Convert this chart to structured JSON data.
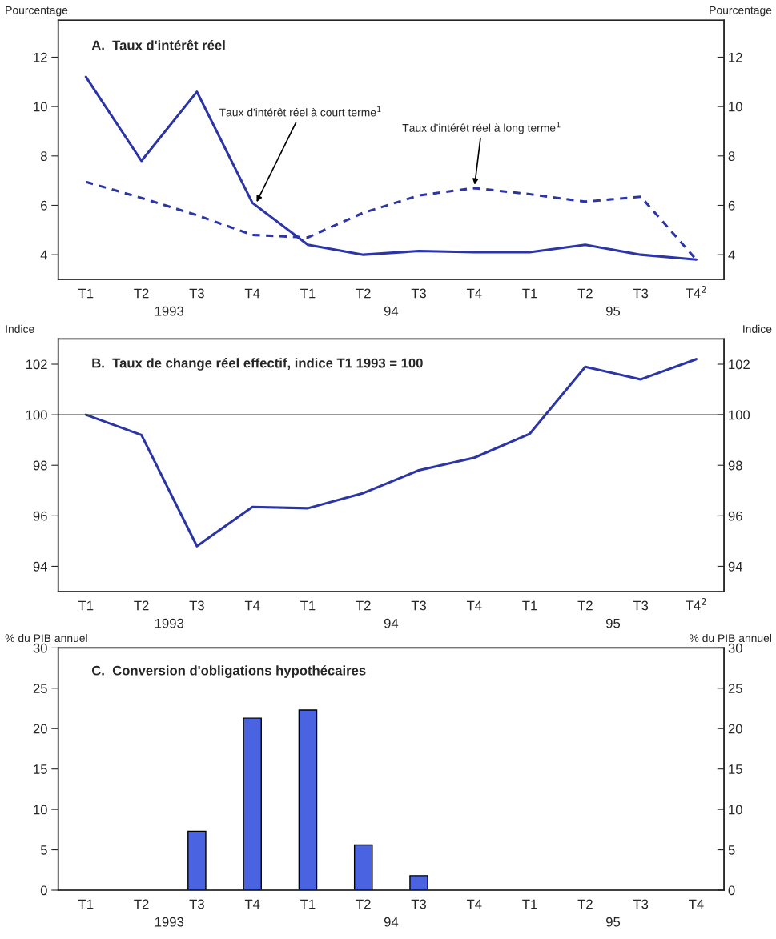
{
  "chart_data": [
    {
      "type": "line",
      "title": "A.  Taux d'intérêt réel",
      "ylabel": "Pourcentage",
      "y2label": "Pourcentage",
      "categories": [
        "T1",
        "T2",
        "T3",
        "T4",
        "T1",
        "T2",
        "T3",
        "T4",
        "T1",
        "T2",
        "T3",
        "T4$^{2}$"
      ],
      "series": [
        {
          "name": "Taux d'intérêt réel à court terme$^{1}$",
          "color": "#2b35a5",
          "line_style": "solid",
          "values": [
            11.2,
            7.8,
            10.6,
            6.1,
            4.4,
            4.0,
            4.15,
            4.1,
            4.1,
            4.4,
            4.0,
            3.8
          ]
        },
        {
          "name": "Taux d'intérêt réel à long terme$^{1}$",
          "color": "#2b35a5",
          "line_style": "dashed",
          "values": [
            6.95,
            6.3,
            5.6,
            4.8,
            4.7,
            5.7,
            6.4,
            6.7,
            6.45,
            6.15,
            6.35,
            3.8
          ]
        }
      ],
      "ylim": [
        3,
        13.5
      ],
      "yticks": [
        4,
        6,
        8,
        10,
        12
      ],
      "y2lim": [
        3,
        13.5
      ],
      "y2ticks": [
        4,
        6,
        8,
        10,
        12
      ],
      "annotations": [
        "1993",
        "94",
        "95"
      ],
      "grid": false
    },
    {
      "type": "line",
      "title": "B.  Taux de change réel effectif, indice T1 1993 = 100",
      "ylabel": "Indice",
      "y2label": "Indice",
      "categories": [
        "T1",
        "T2",
        "T3",
        "T4",
        "T1",
        "T2",
        "T3",
        "T4",
        "T1",
        "T2",
        "T3",
        "T4$^{2}$"
      ],
      "series": [
        {
          "color": "#2b35a5",
          "line_style": "solid",
          "values": [
            100,
            99.2,
            94.8,
            96.35,
            96.3,
            96.9,
            97.8,
            98.3,
            99.25,
            101.9,
            101.4,
            102.2
          ]
        }
      ],
      "ylim": [
        93,
        103
      ],
      "yticks": [
        94,
        96,
        98,
        100,
        102
      ],
      "y2lim": [
        93,
        103
      ],
      "y2ticks": [
        94,
        96,
        98,
        100,
        102
      ],
      "ref_lines": [
        {
          "axis": "y",
          "value": 100,
          "color": "#333333"
        }
      ],
      "annotations": [
        "1993",
        "94",
        "95"
      ],
      "grid": false
    },
    {
      "type": "bar",
      "title": "C.  Conversion d'obligations hypothécaires",
      "ylabel": "% du PIB annuel",
      "y2label": "% du PIB annuel",
      "categories": [
        "T1",
        "T2",
        "T3",
        "T4",
        "T1",
        "T2",
        "T3",
        "T4",
        "T1",
        "T2",
        "T3",
        "T4"
      ],
      "values": [
        null,
        null,
        7.3,
        21.3,
        22.3,
        5.6,
        1.8,
        null,
        null,
        null,
        null,
        null
      ],
      "color": "#4a63e0",
      "ylim": [
        0,
        30
      ],
      "yticks": [
        0,
        5,
        10,
        15,
        20,
        25,
        30
      ],
      "y2lim": [
        0,
        30
      ],
      "y2ticks": [
        0,
        5,
        10,
        15,
        20,
        25,
        30
      ],
      "annotations": [
        "1993",
        "94",
        "95"
      ],
      "grid": false
    }
  ]
}
